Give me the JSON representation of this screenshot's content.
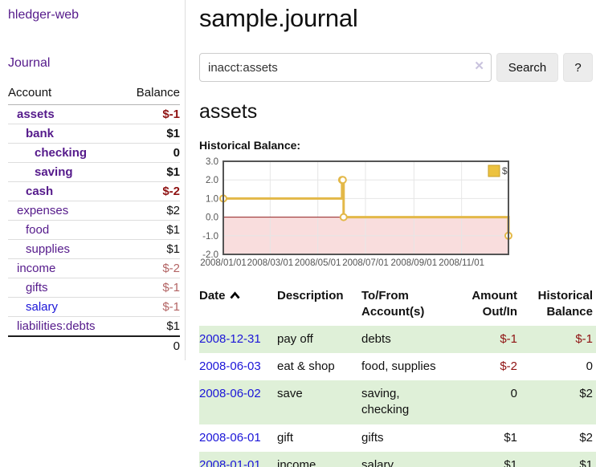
{
  "app": {
    "title": "hledger-web"
  },
  "sidebar": {
    "journal_link": "Journal",
    "accounts_table": {
      "headers": {
        "account": "Account",
        "balance": "Balance"
      },
      "rows": [
        {
          "name": "assets",
          "depth": 1,
          "bold": true,
          "name_color": "purple",
          "balance": "$-1",
          "balance_color": "neg"
        },
        {
          "name": "bank",
          "depth": 2,
          "bold": true,
          "name_color": "purple",
          "balance": "$1",
          "balance_color": ""
        },
        {
          "name": "checking",
          "depth": 3,
          "bold": true,
          "name_color": "purple",
          "balance": "0",
          "balance_color": ""
        },
        {
          "name": "saving",
          "depth": 3,
          "bold": true,
          "name_color": "purple",
          "balance": "$1",
          "balance_color": ""
        },
        {
          "name": "cash",
          "depth": 2,
          "bold": true,
          "name_color": "purple",
          "balance": "$-2",
          "balance_color": "neg"
        },
        {
          "name": "expenses",
          "depth": 1,
          "bold": false,
          "name_color": "purple",
          "balance": "$2",
          "balance_color": ""
        },
        {
          "name": "food",
          "depth": 2,
          "bold": false,
          "name_color": "purple",
          "balance": "$1",
          "balance_color": ""
        },
        {
          "name": "supplies",
          "depth": 2,
          "bold": false,
          "name_color": "purple",
          "balance": "$1",
          "balance_color": ""
        },
        {
          "name": "income",
          "depth": 1,
          "bold": false,
          "name_color": "purple",
          "balance": "$-2",
          "balance_color": "rose"
        },
        {
          "name": "gifts",
          "depth": 2,
          "bold": false,
          "name_color": "purple",
          "balance": "$-1",
          "balance_color": "rose"
        },
        {
          "name": "salary",
          "depth": 2,
          "bold": false,
          "name_color": "blue",
          "balance": "$-1",
          "balance_color": "rose"
        },
        {
          "name": "liabilities:debts",
          "depth": 1,
          "bold": false,
          "name_color": "purple",
          "balance": "$1",
          "balance_color": ""
        }
      ],
      "total": "0"
    }
  },
  "main": {
    "title": "sample.journal",
    "search": {
      "value": "inacct:assets",
      "clear_icon": "✕",
      "button": "Search",
      "help_button": "?"
    },
    "account_heading": "assets",
    "chart_heading": "Historical Balance:",
    "register": {
      "headers": [
        "Date",
        "Description",
        "To/From Account(s)",
        "Amount Out/In",
        "Historical Balance"
      ],
      "date_sort": "ascending",
      "rows": [
        {
          "date": "2008-12-31",
          "description": "pay off",
          "accounts": "debts",
          "amount": "$-1",
          "amount_neg": true,
          "balance": "$-1",
          "balance_neg": true,
          "shaded": true
        },
        {
          "date": "2008-06-03",
          "description": "eat & shop",
          "accounts": "food, supplies",
          "amount": "$-2",
          "amount_neg": true,
          "balance": "0",
          "balance_neg": false,
          "shaded": false
        },
        {
          "date": "2008-06-02",
          "description": "save",
          "accounts": "saving, checking",
          "amount": "0",
          "amount_neg": false,
          "balance": "$2",
          "balance_neg": false,
          "shaded": true
        },
        {
          "date": "2008-06-01",
          "description": "gift",
          "accounts": "gifts",
          "amount": "$1",
          "amount_neg": false,
          "balance": "$2",
          "balance_neg": false,
          "shaded": false
        },
        {
          "date": "2008-01-01",
          "description": "income",
          "accounts": "salary",
          "amount": "$1",
          "amount_neg": false,
          "balance": "$1",
          "balance_neg": false,
          "shaded": true
        }
      ]
    }
  },
  "chart_data": {
    "type": "line",
    "title": "Historical Balance",
    "series": [
      {
        "name": "$",
        "color": "#e3b848",
        "legend_fill": "#ecc23f",
        "legend_stroke": "#c79f2b",
        "step": true,
        "marker": "open-circle",
        "points": [
          [
            "2008-01-01",
            1
          ],
          [
            "2008-06-01",
            2
          ],
          [
            "2008-06-02",
            2
          ],
          [
            "2008-06-03",
            0
          ],
          [
            "2008-12-31",
            -1
          ]
        ]
      }
    ],
    "xlim": [
      "2008-01-01",
      "2008-12-31"
    ],
    "ylim": [
      -2,
      3
    ],
    "x_ticks": [
      "2008/01/01",
      "2008/03/01",
      "2008/05/01",
      "2008/07/01",
      "2008/09/01",
      "2008/11/01"
    ],
    "y_ticks": [
      3.0,
      2.0,
      1.0,
      0.0,
      -1.0,
      -2.0
    ],
    "y_tick_labels": [
      "3.0",
      "2.0",
      "1.0",
      "0.0",
      "-1.0",
      "-2.0"
    ],
    "grid": true,
    "grid_color": "#e6e6e6",
    "border_color": "#545454",
    "tick_text_color": "#545454",
    "negative_region_fill": "#f9dddd",
    "zero_line_color": "#911e1e",
    "legend": {
      "label": "$",
      "position": "top-right"
    }
  },
  "colors": {
    "link_purple": "#551a8b",
    "link_blue": "#1b15d8",
    "negative_strong": "#8f1212",
    "negative_muted": "#b36464",
    "row_shade_green": "#dff0d8"
  }
}
